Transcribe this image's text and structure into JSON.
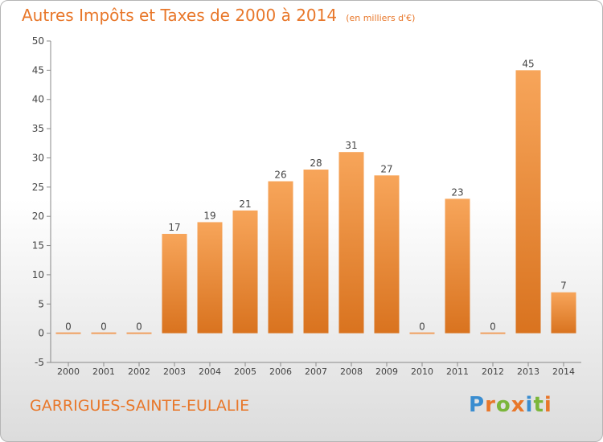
{
  "title": "Autres Impôts et Taxes de 2000 à 2014",
  "title_unit": "(en milliers d'€)",
  "commune": "GARRIGUES-SAINTE-EULALIE",
  "logo": {
    "text": "Proxiti",
    "icon": "proxiti-logo"
  },
  "colors": {
    "accent": "#e8772a",
    "bar_top": "#f7a55a",
    "bar_bottom": "#d9731f"
  },
  "chart_data": {
    "type": "bar",
    "title": "Autres Impôts et Taxes de 2000 à 2014",
    "subtitle": "(en milliers d'€)",
    "xlabel": "",
    "ylabel": "",
    "categories": [
      "2000",
      "2001",
      "2002",
      "2003",
      "2004",
      "2005",
      "2006",
      "2007",
      "2008",
      "2009",
      "2010",
      "2011",
      "2012",
      "2013",
      "2014"
    ],
    "values": [
      0,
      0,
      0,
      17,
      19,
      21,
      26,
      28,
      31,
      27,
      0,
      23,
      0,
      45,
      7
    ],
    "ylim": [
      -5,
      50
    ],
    "yticks": [
      -5,
      0,
      5,
      10,
      15,
      20,
      25,
      30,
      35,
      40,
      45,
      50
    ],
    "grid": false,
    "legend": "none"
  }
}
